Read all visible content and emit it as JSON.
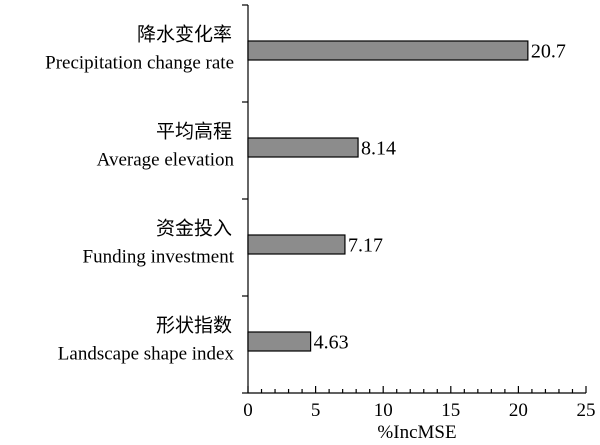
{
  "chart_data": {
    "type": "bar",
    "orientation": "horizontal",
    "categories": [
      {
        "label_cn": "降水变化率",
        "label_en": "Precipitation change rate"
      },
      {
        "label_cn": "平均高程",
        "label_en": "Average elevation"
      },
      {
        "label_cn": "资金投入",
        "label_en": "Funding investment"
      },
      {
        "label_cn": "形状指数",
        "label_en": "Landscape shape index"
      }
    ],
    "values": [
      20.7,
      8.14,
      7.17,
      4.63
    ],
    "value_labels": [
      "20.7",
      "8.14",
      "7.17",
      "4.63"
    ],
    "xlabel": "%IncMSE",
    "ylabel": "",
    "xlim": [
      0,
      25
    ],
    "xticks": [
      0,
      5,
      10,
      15,
      20,
      25
    ],
    "xtick_labels": [
      "0",
      "5",
      "10",
      "15",
      "20",
      "25"
    ],
    "grid": false,
    "bar_color": "#8c8c8c"
  }
}
